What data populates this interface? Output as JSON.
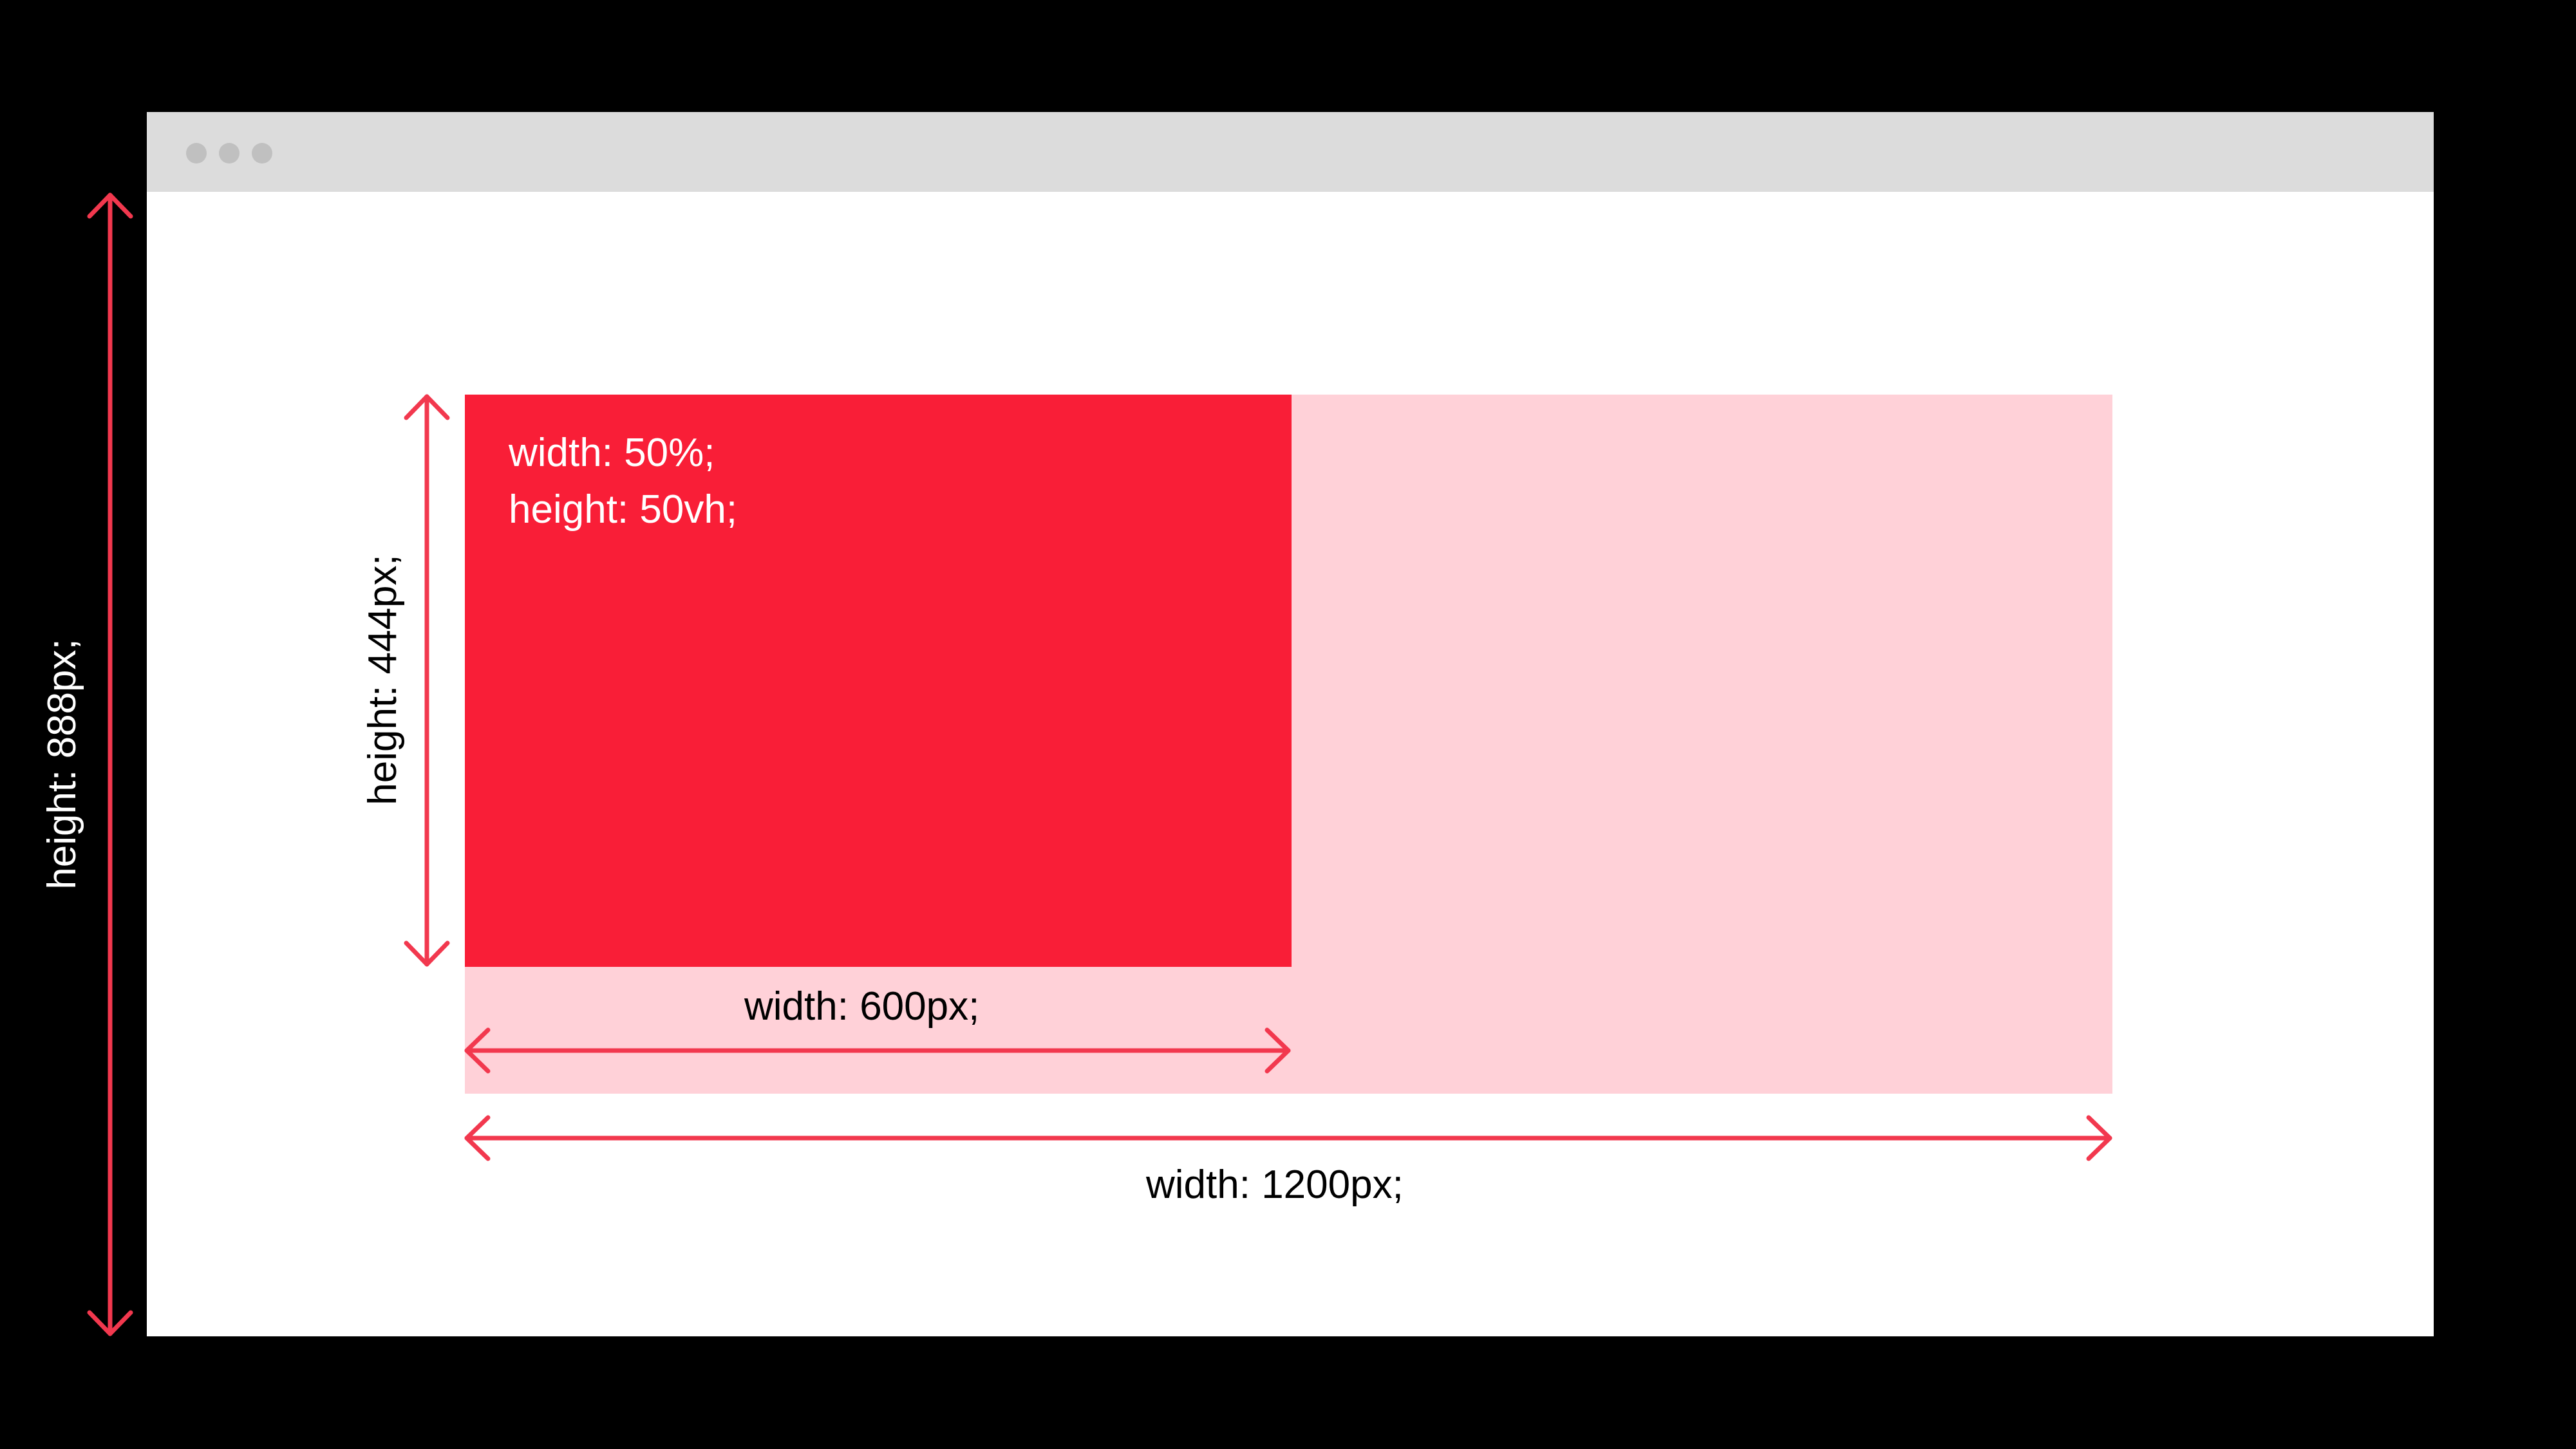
{
  "colors": {
    "background": "#000000",
    "browser_window": "#ffffff",
    "title_bar": "#dcdcdc",
    "window_dots": "#c0c0c0",
    "parent_box": "#ffd1d8",
    "child_box": "#f91e37",
    "arrows": "#f2384e"
  },
  "child_box": {
    "rule_width": "width: 50%;",
    "rule_height": "height: 50vh;"
  },
  "dimensions": {
    "viewport_height_label": "height: 888px;",
    "child_height_label": "height: 444px;",
    "child_width_label": "width: 600px;",
    "parent_width_label": "width: 1200px;"
  }
}
